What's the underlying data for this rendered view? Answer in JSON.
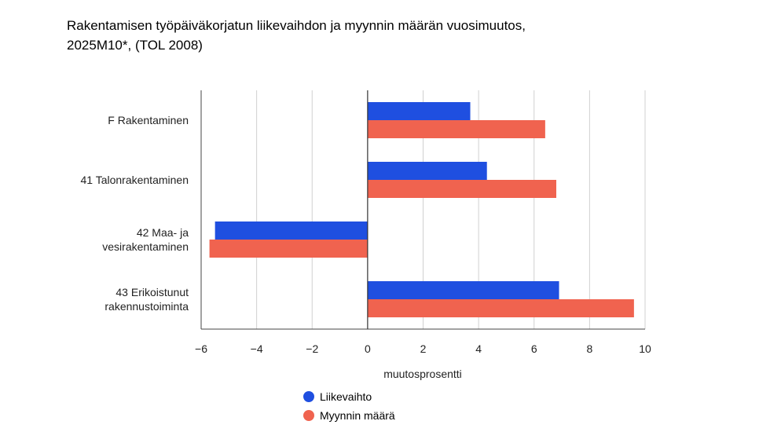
{
  "title_lines": [
    "Rakentamisen työpäiväkorjatun liikevaihdon ja myynnin määrän vuosimuutos,",
    "2025M10*, (TOL 2008)"
  ],
  "chart_data": {
    "type": "bar",
    "orientation": "horizontal",
    "categories": [
      [
        "F Rakentaminen"
      ],
      [
        "41 Talonrakentaminen"
      ],
      [
        "42 Maa- ja",
        "vesirakentaminen"
      ],
      [
        "43 Erikoistunut",
        "rakennustoiminta"
      ]
    ],
    "series": [
      {
        "name": "Liikevaihto",
        "color": "#1f4fe0",
        "values": [
          3.7,
          4.3,
          -5.5,
          6.9
        ]
      },
      {
        "name": "Myynnin määrä",
        "color": "#f0634f",
        "values": [
          6.4,
          6.8,
          -5.7,
          9.6
        ]
      }
    ],
    "xlabel": "muutosprosentti",
    "xlim": [
      -6,
      10
    ],
    "xticks": [
      -6,
      -4,
      -2,
      0,
      2,
      4,
      6,
      8,
      10
    ],
    "xtick_labels": [
      "−6",
      "−4",
      "−2",
      "0",
      "2",
      "4",
      "6",
      "8",
      "10"
    ],
    "grid": true,
    "legend_position": "bottom"
  }
}
